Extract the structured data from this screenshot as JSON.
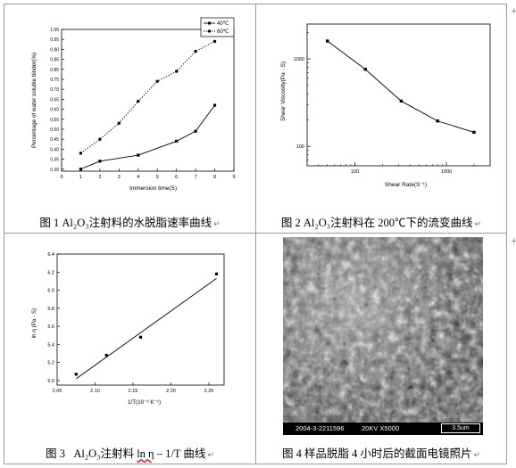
{
  "captions": {
    "fig1": "图 1 Al₂O₃注射料的水脱脂速率曲线",
    "fig2": "图 2 Al₂O₃注射料在 200℃下的流变曲线",
    "fig3_prefix": "图 3   Al₂O₃注射料 ",
    "fig3_ln": "ln η",
    "fig3_suffix": " – 1/T 曲线",
    "fig4": "图 4  样品脱脂 4 小时后的截面电镜照片",
    "return_mark": "↵"
  },
  "sem_info": {
    "label": "2004-3-2211596",
    "voltage": "20KV X5000",
    "scale": "3.5um"
  },
  "chart_data": [
    {
      "type": "line",
      "xlabel": "Immersion time(S)",
      "ylabel": "Percentage of water soluble binder(%)",
      "xlim": [
        0,
        9
      ],
      "ylim": [
        0.29,
        1.0
      ],
      "xticks": [
        "0",
        "1",
        "2",
        "3",
        "4",
        "5",
        "6",
        "7",
        "8",
        "9"
      ],
      "yticks": [
        "0.30",
        "0.35",
        "0.40",
        "0.45",
        "0.50",
        "0.55",
        "0.60",
        "0.65",
        "0.70",
        "0.75",
        "0.80",
        "0.85",
        "0.90",
        "0.95",
        "1.00"
      ],
      "legend_position": "top-right",
      "x": [
        1,
        2,
        4,
        6,
        7,
        8
      ],
      "series": [
        {
          "name": "40℃",
          "style": "solid",
          "x": [
            1,
            2,
            4,
            6,
            7,
            8
          ],
          "values": [
            0.3,
            0.34,
            0.37,
            0.44,
            0.49,
            0.62
          ]
        },
        {
          "name": "60℃",
          "style": "dotted",
          "x": [
            1,
            2,
            3,
            4,
            5,
            6,
            7,
            8
          ],
          "values": [
            0.38,
            0.45,
            0.53,
            0.64,
            0.74,
            0.79,
            0.89,
            0.94
          ]
        }
      ]
    },
    {
      "type": "line",
      "xlabel": "Shear Rate(S⁻¹)",
      "ylabel": "Shear Viscosity(Pa · S)",
      "xscale": "log",
      "yscale": "log",
      "xlim": [
        30,
        3000
      ],
      "ylim": [
        60,
        2500
      ],
      "xticks": [
        {
          "v": 100,
          "label": "100"
        },
        {
          "v": 1000,
          "label": "1000"
        }
      ],
      "yticks": [
        {
          "v": 100,
          "label": "100"
        },
        {
          "v": 1000,
          "label": "1000"
        }
      ],
      "x": [
        50,
        130,
        320,
        800,
        2000
      ],
      "values": [
        1600,
        760,
        330,
        195,
        145
      ]
    },
    {
      "type": "scatter",
      "xlabel": "1/T(10⁻³ K⁻¹)",
      "ylabel": "ln η (Pa · S)",
      "xlim": [
        2.05,
        2.27
      ],
      "ylim": [
        4.95,
        6.4
      ],
      "xticks": [
        "2.05",
        "2.10",
        "2.15",
        "2.20",
        "2.25"
      ],
      "yticks": [
        "5.0",
        "5.2",
        "5.4",
        "5.6",
        "5.8",
        "6.0",
        "6.2",
        "6.4"
      ],
      "x": [
        2.075,
        2.115,
        2.16,
        2.26
      ],
      "values": [
        5.07,
        5.28,
        5.48,
        6.18
      ],
      "fit_line": {
        "x": [
          2.075,
          2.26
        ],
        "y": [
          5.02,
          6.13
        ]
      }
    }
  ]
}
